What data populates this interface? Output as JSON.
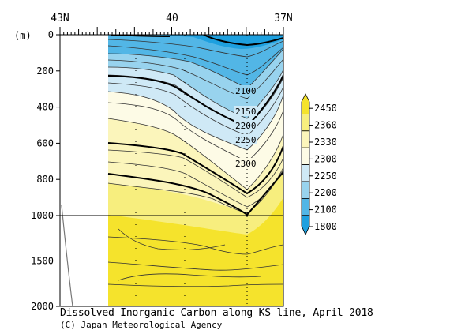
{
  "chart_data": {
    "type": "heatmap",
    "title": "Dissolved Inorganic Carbon along KS line, April 2018",
    "credit": "(C) Japan Meteorological Agency",
    "ylabel": "(m)",
    "x_ticks": [
      "43N",
      "40",
      "37N"
    ],
    "x_range_deg": [
      43,
      37
    ],
    "y_ticks": [
      "0",
      "200",
      "400",
      "600",
      "800",
      "1000",
      "1500",
      "2000"
    ],
    "y_tick_values": [
      0,
      200,
      400,
      600,
      800,
      1000,
      1500,
      2000
    ],
    "ylim": [
      0,
      2000
    ],
    "y_scale_break_m": 1000,
    "section_start_lat": 41.1,
    "contour_labels": [
      {
        "text": "2100",
        "lat": 38.3,
        "depth": 160
      },
      {
        "text": "2150",
        "lat": 38.3,
        "depth": 290
      },
      {
        "text": "2200",
        "lat": 38.3,
        "depth": 345
      },
      {
        "text": "2250",
        "lat": 38.3,
        "depth": 415
      },
      {
        "text": "2300",
        "lat": 38.3,
        "depth": 530
      }
    ],
    "colorbar": {
      "levels": [
        "2450",
        "2360",
        "2330",
        "2300",
        "2250",
        "2200",
        "2100",
        "1800"
      ],
      "colors": [
        "#f5e32c",
        "#f7ee7e",
        "#fbf5bb",
        "#fdfbe6",
        "#cfe9f6",
        "#98d3ee",
        "#52b6e6",
        "#1ea0df"
      ]
    },
    "profile_line_lat": 40.0
  }
}
